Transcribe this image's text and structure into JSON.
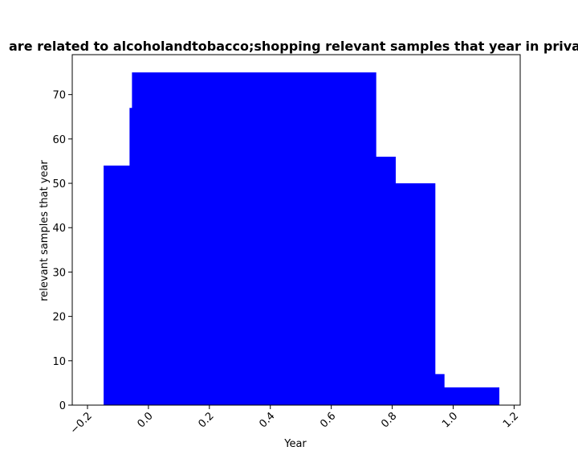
{
  "chart_data": {
    "type": "bar",
    "title": "are related to alcoholandtobacco;shopping relevant samples that year in priva",
    "xlabel": "Year",
    "ylabel": "relevant samples that year",
    "xlim": [
      -0.25,
      1.22
    ],
    "ylim": [
      0,
      79
    ],
    "x_ticks": [
      "−0.2",
      "0.0",
      "0.2",
      "0.4",
      "0.6",
      "0.8",
      "1.0",
      "1.2"
    ],
    "x_tick_values": [
      -0.2,
      0.0,
      0.2,
      0.4,
      0.6,
      0.8,
      1.0,
      1.2
    ],
    "y_ticks": [
      "0",
      "10",
      "20",
      "30",
      "40",
      "50",
      "60",
      "70"
    ],
    "y_tick_values": [
      0,
      10,
      20,
      30,
      40,
      50,
      60,
      70
    ],
    "bar_color": "#0000ff",
    "bars": [
      {
        "x0": -0.147,
        "x1": -0.062,
        "value": 54
      },
      {
        "x0": -0.062,
        "x1": -0.054,
        "value": 67
      },
      {
        "x0": -0.054,
        "x1": 0.746,
        "value": 75
      },
      {
        "x0": 0.746,
        "x1": 0.81,
        "value": 56
      },
      {
        "x0": 0.81,
        "x1": 0.94,
        "value": 50
      },
      {
        "x0": 0.94,
        "x1": 0.97,
        "value": 7
      },
      {
        "x0": 0.97,
        "x1": 1.15,
        "value": 4
      }
    ]
  }
}
